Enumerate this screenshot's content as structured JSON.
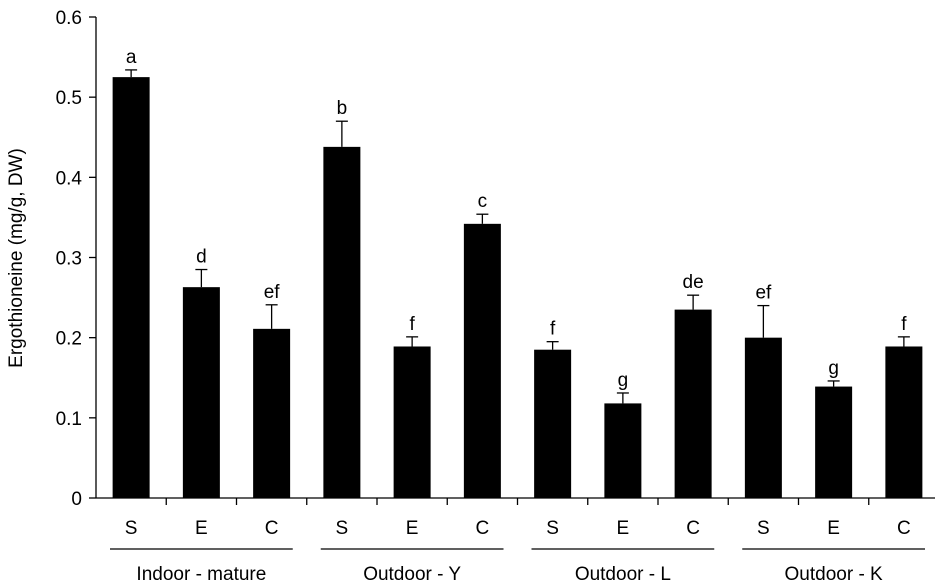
{
  "chart_data": {
    "type": "bar",
    "ylabel": "Ergothioneine (mg/g, DW)",
    "xlabel": "",
    "ylim": [
      0,
      0.6
    ],
    "yticks": [
      "0",
      "0.1",
      "0.2",
      "0.3",
      "0.4",
      "0.5",
      "0.6"
    ],
    "grid": false,
    "bar_color": "#000000",
    "groups": [
      {
        "label": "Indoor - mature",
        "bars": [
          {
            "category": "S",
            "value": 0.525,
            "error": 0.009,
            "letter": "a"
          },
          {
            "category": "E",
            "value": 0.263,
            "error": 0.022,
            "letter": "d"
          },
          {
            "category": "C",
            "value": 0.211,
            "error": 0.03,
            "letter": "ef"
          }
        ]
      },
      {
        "label": "Outdoor - Y",
        "bars": [
          {
            "category": "S",
            "value": 0.438,
            "error": 0.032,
            "letter": "b"
          },
          {
            "category": "E",
            "value": 0.189,
            "error": 0.012,
            "letter": "f"
          },
          {
            "category": "C",
            "value": 0.342,
            "error": 0.012,
            "letter": "c"
          }
        ]
      },
      {
        "label": "Outdoor - L",
        "bars": [
          {
            "category": "S",
            "value": 0.185,
            "error": 0.01,
            "letter": "f"
          },
          {
            "category": "E",
            "value": 0.118,
            "error": 0.013,
            "letter": "g"
          },
          {
            "category": "C",
            "value": 0.235,
            "error": 0.018,
            "letter": "de"
          }
        ]
      },
      {
        "label": "Outdoor - K",
        "bars": [
          {
            "category": "S",
            "value": 0.2,
            "error": 0.04,
            "letter": "ef"
          },
          {
            "category": "E",
            "value": 0.139,
            "error": 0.007,
            "letter": "g"
          },
          {
            "category": "C",
            "value": 0.189,
            "error": 0.012,
            "letter": "f"
          }
        ]
      }
    ]
  }
}
